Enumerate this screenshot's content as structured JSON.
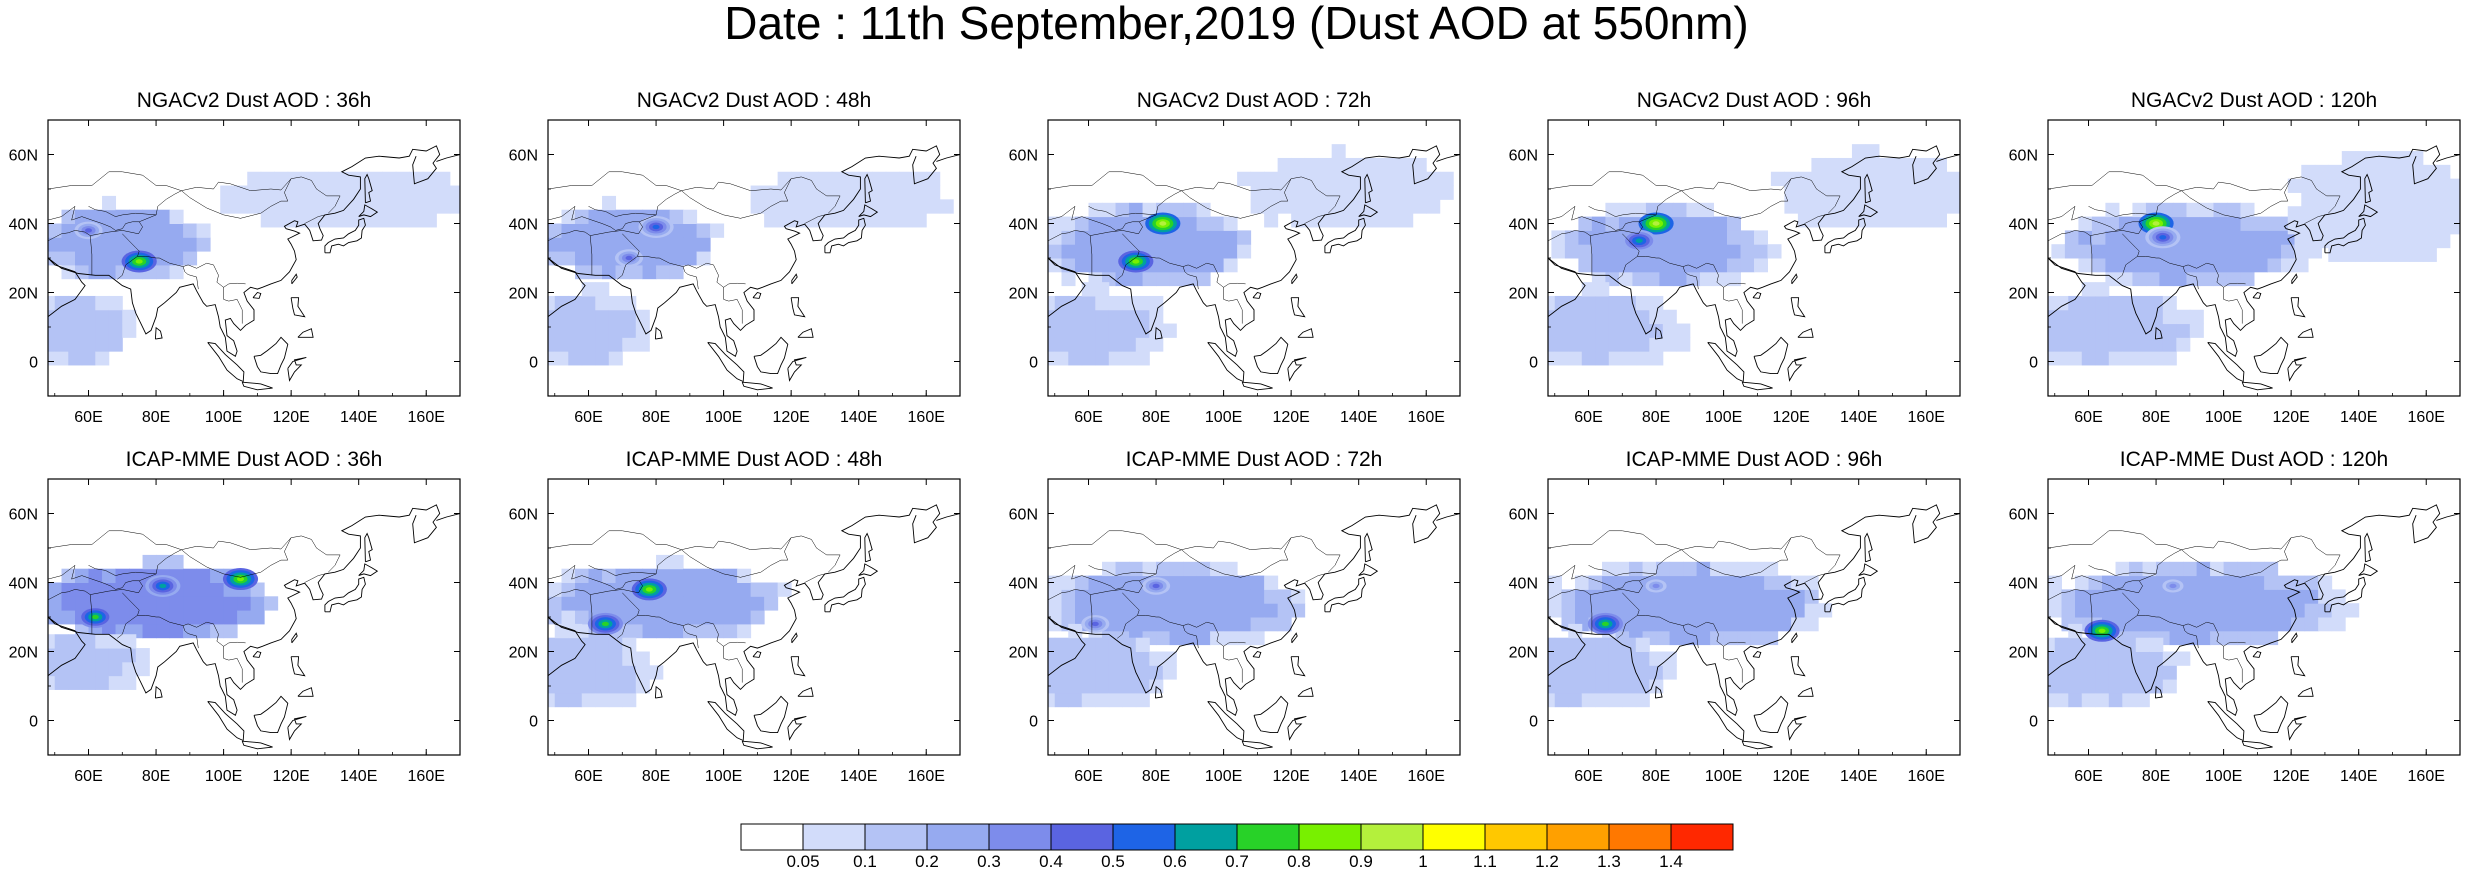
{
  "title": "Date : 11th September,2019 (Dust AOD at 550nm)",
  "rows": [
    {
      "model": "NGACv2",
      "panels": [
        {
          "title": "NGACv2 Dust AOD : 36h",
          "hotspots": [
            {
              "lon": 75,
              "lat": 29,
              "level": 9
            },
            {
              "lon": 60,
              "lat": 38,
              "level": 5
            }
          ],
          "plumes": [
            {
              "lon0": 40,
              "lon1": 95,
              "lat0": 20,
              "lat1": 45,
              "level": 3
            },
            {
              "lon0": 95,
              "lon1": 175,
              "lat0": 35,
              "lat1": 55,
              "level": 1
            },
            {
              "lon0": 30,
              "lon1": 75,
              "lat0": -5,
              "lat1": 20,
              "level": 2
            }
          ]
        },
        {
          "title": "NGACv2 Dust AOD : 48h",
          "hotspots": [
            {
              "lon": 80,
              "lat": 39,
              "level": 6
            },
            {
              "lon": 72,
              "lat": 30,
              "level": 5
            }
          ],
          "plumes": [
            {
              "lon0": 40,
              "lon1": 100,
              "lat0": 20,
              "lat1": 45,
              "level": 3
            },
            {
              "lon0": 100,
              "lon1": 170,
              "lat0": 35,
              "lat1": 55,
              "level": 1
            },
            {
              "lon0": 30,
              "lon1": 80,
              "lat0": -5,
              "lat1": 20,
              "level": 2
            }
          ]
        },
        {
          "title": "NGACv2 Dust AOD : 72h",
          "hotspots": [
            {
              "lon": 82,
              "lat": 40,
              "level": 10
            },
            {
              "lon": 74,
              "lat": 29,
              "level": 9
            }
          ],
          "plumes": [
            {
              "lon0": 40,
              "lon1": 110,
              "lat0": 18,
              "lat1": 45,
              "level": 3
            },
            {
              "lon0": 100,
              "lon1": 170,
              "lat0": 35,
              "lat1": 60,
              "level": 1
            },
            {
              "lon0": 30,
              "lon1": 85,
              "lat0": -5,
              "lat1": 20,
              "level": 2
            }
          ]
        },
        {
          "title": "NGACv2 Dust AOD : 96h",
          "hotspots": [
            {
              "lon": 80,
              "lat": 40,
              "level": 10
            },
            {
              "lon": 75,
              "lat": 35,
              "level": 7
            }
          ],
          "plumes": [
            {
              "lon0": 45,
              "lon1": 115,
              "lat0": 18,
              "lat1": 45,
              "level": 3
            },
            {
              "lon0": 110,
              "lon1": 175,
              "lat0": 35,
              "lat1": 60,
              "level": 1
            },
            {
              "lon0": 30,
              "lon1": 90,
              "lat0": -5,
              "lat1": 20,
              "level": 2
            }
          ]
        },
        {
          "title": "NGACv2 Dust AOD : 120h",
          "hotspots": [
            {
              "lon": 80,
              "lat": 40,
              "level": 10
            },
            {
              "lon": 82,
              "lat": 36,
              "level": 6
            }
          ],
          "plumes": [
            {
              "lon0": 45,
              "lon1": 130,
              "lat0": 18,
              "lat1": 45,
              "level": 3
            },
            {
              "lon0": 115,
              "lon1": 175,
              "lat0": 25,
              "lat1": 60,
              "level": 1
            },
            {
              "lon0": 30,
              "lon1": 95,
              "lat0": -5,
              "lat1": 20,
              "level": 2
            }
          ]
        }
      ]
    },
    {
      "model": "ICAP-MME",
      "panels": [
        {
          "title": "ICAP-MME Dust AOD : 36h",
          "hotspots": [
            {
              "lon": 105,
              "lat": 41,
              "level": 9
            },
            {
              "lon": 62,
              "lat": 30,
              "level": 8
            },
            {
              "lon": 82,
              "lat": 39,
              "level": 7
            }
          ],
          "plumes": [
            {
              "lon0": 40,
              "lon1": 115,
              "lat0": 20,
              "lat1": 45,
              "level": 4
            },
            {
              "lon0": 30,
              "lon1": 80,
              "lat0": 5,
              "lat1": 25,
              "level": 2
            }
          ]
        },
        {
          "title": "ICAP-MME Dust AOD : 48h",
          "hotspots": [
            {
              "lon": 78,
              "lat": 38,
              "level": 9
            },
            {
              "lon": 65,
              "lat": 28,
              "level": 8
            }
          ],
          "plumes": [
            {
              "lon0": 40,
              "lon1": 120,
              "lat0": 20,
              "lat1": 45,
              "level": 3
            },
            {
              "lon0": 30,
              "lon1": 80,
              "lat0": 0,
              "lat1": 25,
              "level": 2
            }
          ]
        },
        {
          "title": "ICAP-MME Dust AOD : 72h",
          "hotspots": [
            {
              "lon": 80,
              "lat": 39,
              "level": 5
            },
            {
              "lon": 62,
              "lat": 28,
              "level": 5
            }
          ],
          "plumes": [
            {
              "lon0": 40,
              "lon1": 125,
              "lat0": 18,
              "lat1": 45,
              "level": 3
            },
            {
              "lon0": 30,
              "lon1": 85,
              "lat0": 0,
              "lat1": 25,
              "level": 2
            }
          ]
        },
        {
          "title": "ICAP-MME Dust AOD : 96h",
          "hotspots": [
            {
              "lon": 65,
              "lat": 28,
              "level": 8
            },
            {
              "lon": 80,
              "lat": 39,
              "level": 4
            }
          ],
          "plumes": [
            {
              "lon0": 40,
              "lon1": 135,
              "lat0": 18,
              "lat1": 45,
              "level": 3
            },
            {
              "lon0": 30,
              "lon1": 85,
              "lat0": 0,
              "lat1": 25,
              "level": 2
            }
          ]
        },
        {
          "title": "ICAP-MME Dust AOD : 120h",
          "hotspots": [
            {
              "lon": 64,
              "lat": 26,
              "level": 9
            },
            {
              "lon": 85,
              "lat": 39,
              "level": 4
            }
          ],
          "plumes": [
            {
              "lon0": 40,
              "lon1": 140,
              "lat0": 18,
              "lat1": 45,
              "level": 3
            },
            {
              "lon0": 30,
              "lon1": 90,
              "lat0": 0,
              "lat1": 25,
              "level": 2
            }
          ]
        }
      ]
    }
  ],
  "map_extent": {
    "lon_min": 48,
    "lon_max": 170,
    "lat_min": -10,
    "lat_max": 70
  },
  "x_ticks": [
    {
      "value": 60,
      "label": "60E"
    },
    {
      "value": 80,
      "label": "80E"
    },
    {
      "value": 100,
      "label": "100E"
    },
    {
      "value": 120,
      "label": "120E"
    },
    {
      "value": 140,
      "label": "140E"
    },
    {
      "value": 160,
      "label": "160E"
    }
  ],
  "y_ticks": [
    {
      "value": 0,
      "label": "0"
    },
    {
      "value": 20,
      "label": "20N"
    },
    {
      "value": 40,
      "label": "40N"
    },
    {
      "value": 60,
      "label": "60N"
    }
  ],
  "colorbar": {
    "labels": [
      "0.05",
      "0.1",
      "0.2",
      "0.3",
      "0.4",
      "0.5",
      "0.6",
      "0.7",
      "0.8",
      "0.9",
      "1",
      "1.1",
      "1.2",
      "1.3",
      "1.4"
    ],
    "colors": [
      "#ffffff",
      "#d2dcfa",
      "#b4c3f5",
      "#96aaf0",
      "#7d8ceb",
      "#5a64e1",
      "#1e64e6",
      "#00a0a0",
      "#28d228",
      "#78f000",
      "#b4f03c",
      "#ffff00",
      "#ffc800",
      "#ffa000",
      "#ff7800",
      "#ff2800"
    ]
  }
}
